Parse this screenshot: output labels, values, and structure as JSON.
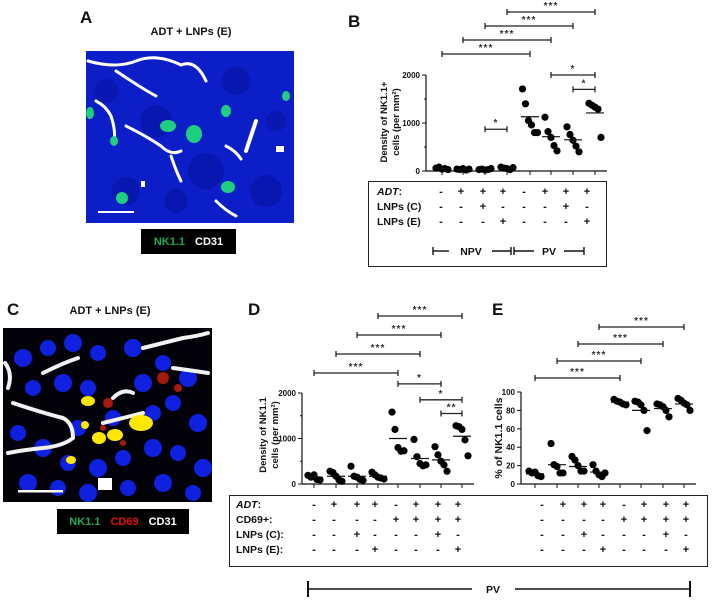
{
  "panels": {
    "A": {
      "letter": "A",
      "title": "ADT + LNPs (E)",
      "legend": [
        {
          "label": "NK1.1",
          "color": "#1faa55"
        },
        {
          "label": "CD31",
          "color": "#ffffff"
        }
      ]
    },
    "B": {
      "letter": "B"
    },
    "C": {
      "letter": "C",
      "title": "ADT + LNPs (E)",
      "legend": [
        {
          "label": "NK1.1",
          "color": "#1faa55"
        },
        {
          "label": "CD69",
          "color": "#e01010"
        },
        {
          "label": "CD31",
          "color": "#ffffff"
        }
      ]
    },
    "D": {
      "letter": "D"
    },
    "E": {
      "letter": "E"
    }
  },
  "conditions_B": {
    "rows": [
      {
        "label": "ADT:",
        "italic": true,
        "signs": [
          "-",
          "+",
          "+",
          "+",
          "-",
          "+",
          "+",
          "+"
        ]
      },
      {
        "label": "LNPs (C)",
        "italic": false,
        "signs": [
          "-",
          "-",
          "+",
          "-",
          "-",
          "-",
          "+",
          "-"
        ]
      },
      {
        "label": "LNPs (E)",
        "italic": false,
        "signs": [
          "-",
          "-",
          "-",
          "+",
          "-",
          "-",
          "-",
          "+"
        ]
      }
    ],
    "groups": [
      {
        "label": "NPV"
      },
      {
        "label": "PV"
      }
    ]
  },
  "conditions_DE": {
    "rows": [
      {
        "label": "ADT:",
        "italic": true,
        "signs": [
          "-",
          "+",
          "+",
          "+",
          "-",
          "+",
          "+",
          "+"
        ]
      },
      {
        "label": "CD69+:",
        "italic": false,
        "signs": [
          "-",
          "-",
          "-",
          "-",
          "+",
          "+",
          "+",
          "+"
        ]
      },
      {
        "label": "LNPs (C):",
        "italic": false,
        "signs": [
          "-",
          "-",
          "+",
          "-",
          "-",
          "-",
          "+",
          "-"
        ]
      },
      {
        "label": "LNPs (E):",
        "italic": false,
        "signs": [
          "-",
          "-",
          "-",
          "+",
          "-",
          "-",
          "-",
          "+"
        ]
      }
    ],
    "group_label": "PV"
  },
  "chart_data": [
    {
      "id": "B",
      "type": "scatter",
      "title": "",
      "xlabel": "",
      "ylabel": "Density of NK1.1+ cells (per mm²)",
      "ylim": [
        0,
        2000
      ],
      "yticks": [
        0,
        1000,
        2000
      ],
      "categories": [
        "NPV -ADT",
        "NPV ADT",
        "NPV ADT+LNPs(C)",
        "NPV ADT+LNPs(E)",
        "PV -ADT",
        "PV ADT",
        "PV ADT+LNPs(C)",
        "PV ADT+LNPs(E)"
      ],
      "points": [
        [
          60,
          80,
          40,
          50,
          30
        ],
        [
          40,
          30,
          50,
          20,
          40
        ],
        [
          30,
          40,
          20,
          30,
          50
        ],
        [
          80,
          60,
          50,
          30,
          70
        ],
        [
          1710,
          1400,
          1050,
          960,
          800,
          800
        ],
        [
          1120,
          820,
          700,
          530,
          420
        ],
        [
          920,
          760,
          640,
          520,
          400
        ],
        [
          1410,
          1370,
          1330,
          1290,
          700
        ]
      ],
      "means": [
        55,
        35,
        35,
        60,
        1130,
        715,
        650,
        1210
      ],
      "significance": [
        {
          "from": 0,
          "to": 4,
          "label": "***",
          "level": 1
        },
        {
          "from": 1,
          "to": 5,
          "label": "***",
          "level": 2
        },
        {
          "from": 2,
          "to": 6,
          "label": "***",
          "level": 3
        },
        {
          "from": 3,
          "to": 7,
          "label": "***",
          "level": 4
        },
        {
          "from": 2,
          "to": 3,
          "label": "*",
          "y": 870
        },
        {
          "from": 5,
          "to": 7,
          "label": "*",
          "y": 2000
        },
        {
          "from": 6,
          "to": 7,
          "label": "*",
          "y": 1700
        }
      ]
    },
    {
      "id": "D",
      "type": "scatter",
      "title": "",
      "xlabel": "",
      "ylabel": "Density of NK1.1 cells (per mm²)",
      "ylim": [
        0,
        2000
      ],
      "yticks": [
        0,
        1000,
        2000
      ],
      "categories": [
        "-ADT",
        "ADT",
        "ADT+LNPs(C)",
        "ADT+LNPs(E)",
        "CD69+ -ADT",
        "CD69+ ADT",
        "CD69+ ADT+LNPs(C)",
        "CD69+ ADT+LNPs(E)"
      ],
      "points": [
        [
          190,
          150,
          200,
          100,
          90
        ],
        [
          280,
          250,
          170,
          90,
          60
        ],
        [
          390,
          170,
          150,
          100,
          80
        ],
        [
          260,
          200,
          150,
          130,
          110
        ],
        [
          1580,
          1200,
          800,
          720,
          730
        ],
        [
          980,
          600,
          450,
          400,
          420
        ],
        [
          820,
          640,
          500,
          420,
          280
        ],
        [
          1280,
          1260,
          1200,
          970,
          620
        ]
      ],
      "means": [
        150,
        170,
        170,
        170,
        1000,
        560,
        530,
        1050
      ],
      "significance": [
        {
          "from": 0,
          "to": 4,
          "label": "***",
          "level": 1
        },
        {
          "from": 1,
          "to": 5,
          "label": "***",
          "level": 2
        },
        {
          "from": 2,
          "to": 6,
          "label": "***",
          "level": 3
        },
        {
          "from": 3,
          "to": 7,
          "label": "***",
          "level": 4
        },
        {
          "from": 4,
          "to": 6,
          "label": "*",
          "y": 2200
        },
        {
          "from": 5,
          "to": 7,
          "label": "*",
          "y": 1850
        },
        {
          "from": 6,
          "to": 7,
          "label": "**",
          "y": 1550
        }
      ]
    },
    {
      "id": "E",
      "type": "scatter",
      "title": "",
      "xlabel": "",
      "ylabel": "% of NK1.1 cells",
      "ylim": [
        0,
        100
      ],
      "yticks": [
        0,
        20,
        40,
        60,
        80,
        100
      ],
      "categories": [
        "-ADT",
        "ADT",
        "ADT+LNPs(C)",
        "ADT+LNPs(E)",
        "CD69+ -ADT",
        "CD69+ ADT",
        "CD69+ ADT+LNPs(C)",
        "CD69+ ADT+LNPs(E)"
      ],
      "points": [
        [
          14,
          12,
          13,
          9,
          8
        ],
        [
          44,
          21,
          19,
          12,
          12
        ],
        [
          30,
          26,
          20,
          14,
          14
        ],
        [
          21,
          14,
          10,
          8,
          12
        ],
        [
          92,
          90,
          89,
          87,
          86
        ],
        [
          90,
          89,
          86,
          80,
          58
        ],
        [
          87,
          86,
          84,
          80,
          73
        ],
        [
          93,
          91,
          88,
          86,
          80
        ]
      ],
      "means": [
        11,
        21,
        19,
        13,
        89,
        80,
        82,
        87
      ],
      "significance": [
        {
          "from": 0,
          "to": 4,
          "label": "***",
          "level": 1
        },
        {
          "from": 1,
          "to": 5,
          "label": "***",
          "level": 2
        },
        {
          "from": 2,
          "to": 6,
          "label": "***",
          "level": 3
        },
        {
          "from": 3,
          "to": 7,
          "label": "***",
          "level": 4
        }
      ]
    }
  ]
}
